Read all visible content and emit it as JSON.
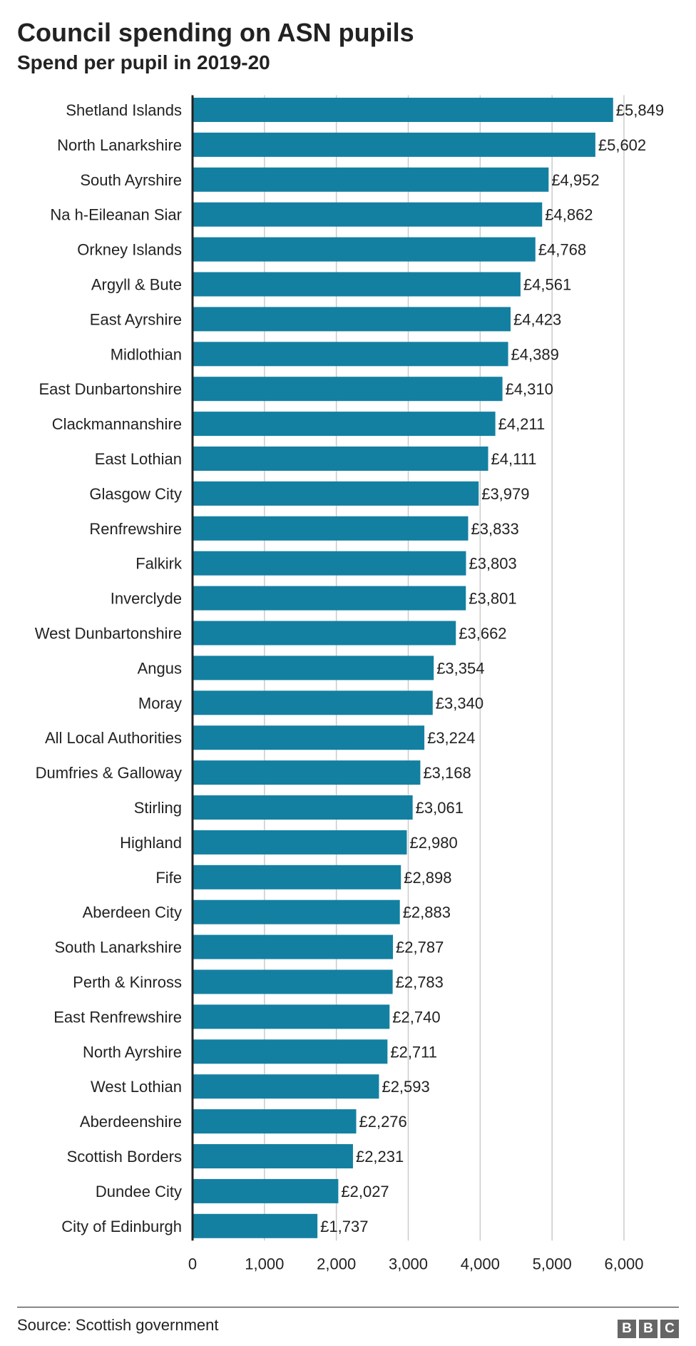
{
  "chart_data": {
    "type": "bar",
    "orientation": "horizontal",
    "title": "Council spending on ASN pupils",
    "subtitle": "Spend per pupil in 2019-20",
    "categories": [
      "Shetland Islands",
      "North Lanarkshire",
      "South Ayrshire",
      "Na h-Eileanan Siar",
      "Orkney Islands",
      "Argyll & Bute",
      "East Ayrshire",
      "Midlothian",
      "East Dunbartonshire",
      "Clackmannanshire",
      "East Lothian",
      "Glasgow City",
      "Renfrewshire",
      "Falkirk",
      "Inverclyde",
      "West Dunbartonshire",
      "Angus",
      "Moray",
      "All Local Authorities",
      "Dumfries & Galloway",
      "Stirling",
      "Highland",
      "Fife",
      "Aberdeen City",
      "South Lanarkshire",
      "Perth & Kinross",
      "East Renfrewshire",
      "North Ayrshire",
      "West Lothian",
      "Aberdeenshire",
      "Scottish Borders",
      "Dundee City",
      "City of Edinburgh"
    ],
    "values": [
      5849,
      5602,
      4952,
      4862,
      4768,
      4561,
      4423,
      4389,
      4310,
      4211,
      4111,
      3979,
      3833,
      3803,
      3801,
      3662,
      3354,
      3340,
      3224,
      3168,
      3061,
      2980,
      2898,
      2883,
      2787,
      2783,
      2740,
      2711,
      2593,
      2276,
      2231,
      2027,
      1737
    ],
    "value_labels": [
      "£5,849",
      "£5,602",
      "£4,952",
      "£4,862",
      "£4,768",
      "£4,561",
      "£4,423",
      "£4,389",
      "£4,310",
      "£4,211",
      "£4,111",
      "£3,979",
      "£3,833",
      "£3,803",
      "£3,801",
      "£3,662",
      "£3,354",
      "£3,340",
      "£3,224",
      "£3,168",
      "£3,061",
      "£2,980",
      "£2,898",
      "£2,883",
      "£2,787",
      "£2,783",
      "£2,740",
      "£2,711",
      "£2,593",
      "£2,276",
      "£2,231",
      "£2,027",
      "£1,737"
    ],
    "xticks": [
      0,
      1000,
      2000,
      3000,
      4000,
      5000,
      6000
    ],
    "xtick_labels": [
      "0",
      "1,000",
      "2,000",
      "3,000",
      "4,000",
      "5,000",
      "6,000"
    ],
    "xlim": [
      0,
      6000
    ],
    "xlabel": "",
    "ylabel": "",
    "grid": "vertical",
    "legend": "none",
    "bar_color": "#1380A1",
    "grid_color": "#CBCBCB",
    "axis_color": "#222222"
  },
  "footer": {
    "source": "Source: Scottish government",
    "logo_letters": [
      "B",
      "B",
      "C"
    ]
  }
}
